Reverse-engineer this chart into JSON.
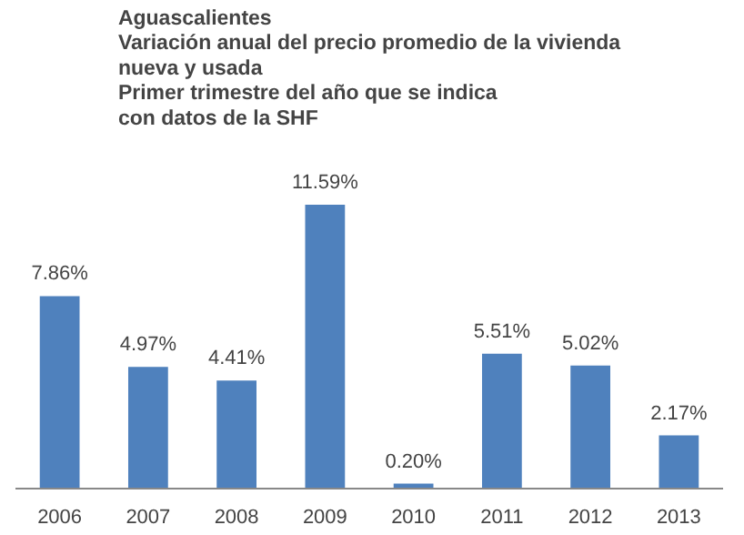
{
  "chart_data": {
    "type": "bar",
    "title": "Aguascalientes\nVariación anual del precio promedio de la vivienda\nnueva y usada\nPrimer trimestre del año que se indica\ncon datos de la SHF",
    "categories": [
      "2006",
      "2007",
      "2008",
      "2009",
      "2010",
      "2011",
      "2012",
      "2013"
    ],
    "values": [
      7.86,
      4.97,
      4.41,
      11.59,
      0.2,
      5.51,
      5.02,
      2.17
    ],
    "value_labels": [
      "7.86%",
      "4.97%",
      "4.41%",
      "11.59%",
      "0.20%",
      "5.51%",
      "5.02%",
      "2.17%"
    ],
    "color": "#4f81bd",
    "grid": false
  }
}
